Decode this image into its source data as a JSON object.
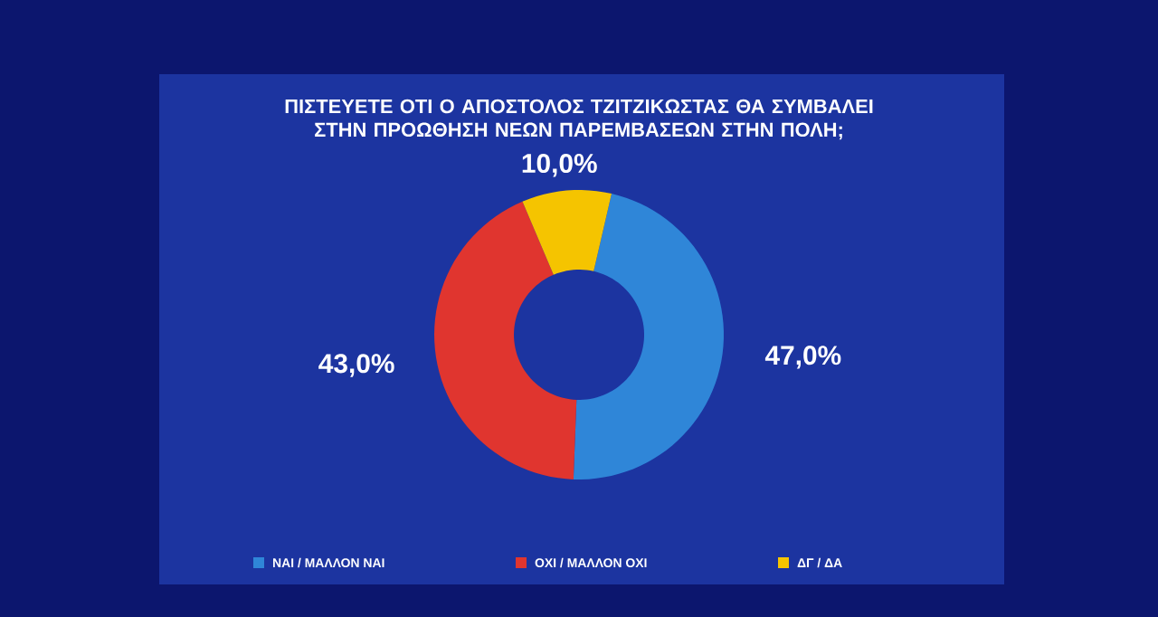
{
  "chart_data": {
    "type": "donut",
    "title": "ΠΙΣΤΕΥΕΤΕ ΟΤΙ Ο ΑΠΟΣΤΟΛΟΣ ΤΖΙΤΖΙΚΩΣΤΑΣ ΘΑ ΣΥΜΒΑΛΕΙ ΣΤΗΝ ΠΡΟΩΘΗΣΗ ΝΕΩΝ ΠΑΡΕΜΒΑΣΕΩΝ ΣΤΗΝ ΠΟΛΗ;",
    "categories": [
      "ΝΑΙ / ΜΑΛΛΟΝ ΝΑΙ",
      "ΟΧΙ / ΜΑΛΛΟΝ ΟΧΙ",
      "ΔΓ / ΔΑ"
    ],
    "values": [
      47.0,
      43.0,
      10.0
    ],
    "value_labels": [
      "47,0%",
      "43,0%",
      "10,0%"
    ],
    "colors": [
      "#2f86d8",
      "#e0352f",
      "#f5c400"
    ],
    "legend": "bottom"
  }
}
